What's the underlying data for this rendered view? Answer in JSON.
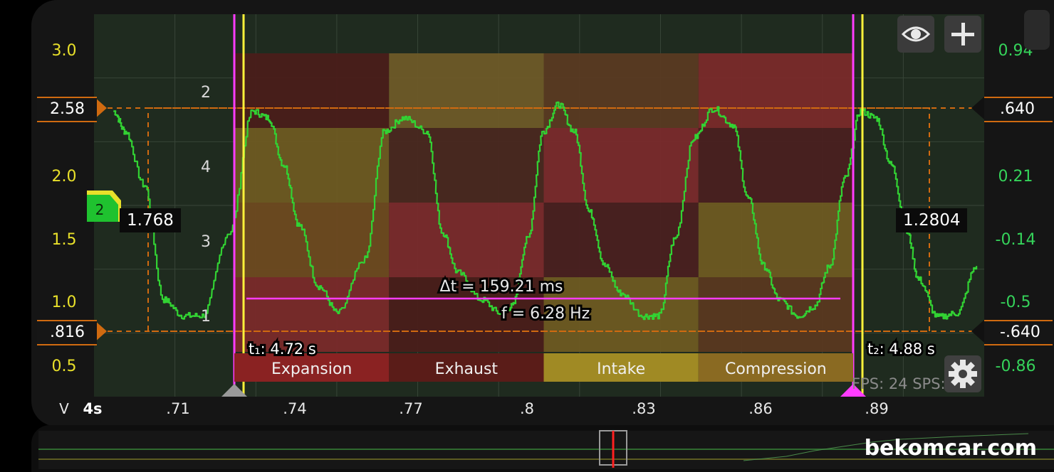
{
  "colors": {
    "background": "#1f2b1f",
    "grid": "#384538",
    "trace": "#32d233",
    "cursor_magenta": "#ff3cff",
    "cursor_yellow": "#fff23a",
    "level_orange": "#d06a10",
    "axis_left": "#e8e02a",
    "axis_right": "#35d35a"
  },
  "left_axis": {
    "unit": "V",
    "ticks": [
      "3.0",
      "2.0",
      "1.5",
      "1.0",
      "0.5"
    ],
    "level_high": "2.58",
    "level_low": ".816"
  },
  "right_axis": {
    "ticks": [
      "0.94",
      "0.21",
      "-0.14",
      "-0.5",
      "-0.86"
    ],
    "level_high": ".640",
    "level_low": "-.640"
  },
  "x_axis": {
    "scale": "4s",
    "ticks": [
      ".71",
      ".74",
      ".77",
      ".8",
      ".83",
      ".86",
      ".89"
    ]
  },
  "channel": {
    "badge": "2",
    "value_left": "1.768",
    "value_right": "1.2804"
  },
  "cylinders": {
    "labels": [
      "2",
      "4",
      "3",
      "1"
    ]
  },
  "phases": [
    "Expansion",
    "Exhaust",
    "Intake",
    "Compression"
  ],
  "measurement": {
    "delta_t": "Δt = 159.21 ms",
    "frequency": "f = 6.28 Hz",
    "t1": "t₁: 4.72 s",
    "t2": "t₂: 4.88 s"
  },
  "stats": "FPS: 24  SPS: 75",
  "toolbar": {
    "eye": "eye-icon",
    "plus": "plus-icon",
    "settings": "gear-icon"
  },
  "watermark": "bekomcar.com",
  "chart_data": {
    "type": "line",
    "x": [
      0.697,
      0.7,
      0.705,
      0.71,
      0.715,
      0.72,
      0.727,
      0.733,
      0.737,
      0.741,
      0.745,
      0.75,
      0.755,
      0.762,
      0.767,
      0.772,
      0.778,
      0.782,
      0.786,
      0.792,
      0.797,
      0.8,
      0.804,
      0.808,
      0.812,
      0.816,
      0.82,
      0.824,
      0.828,
      0.834,
      0.838,
      0.842,
      0.847,
      0.852,
      0.857,
      0.861,
      0.865,
      0.869,
      0.874,
      0.878,
      0.882,
      0.886,
      0.89,
      0.894,
      0.898,
      0.902,
      0.905,
      0.91,
      0.915,
      0.92
    ],
    "series": [
      {
        "values": [
          2.45,
          2.3,
          1.9,
          1.05,
          0.93,
          0.93,
          1.55,
          2.45,
          2.4,
          2.05,
          1.6,
          1.15,
          0.95,
          1.35,
          2.3,
          2.4,
          2.3,
          1.55,
          1.25,
          1.05,
          0.95,
          1.0,
          1.5,
          2.3,
          2.5,
          2.3,
          1.7,
          1.3,
          1.1,
          0.93,
          0.93,
          1.5,
          2.25,
          2.47,
          2.35,
          1.8,
          1.3,
          1.05,
          0.93,
          1.0,
          1.3,
          1.95,
          2.45,
          2.4,
          2.05,
          1.55,
          1.2,
          0.92,
          0.95,
          1.3
        ]
      }
    ],
    "ylim": [
      0.33,
      3.17
    ],
    "xlim": [
      0.692,
      0.922
    ],
    "grid": true
  }
}
